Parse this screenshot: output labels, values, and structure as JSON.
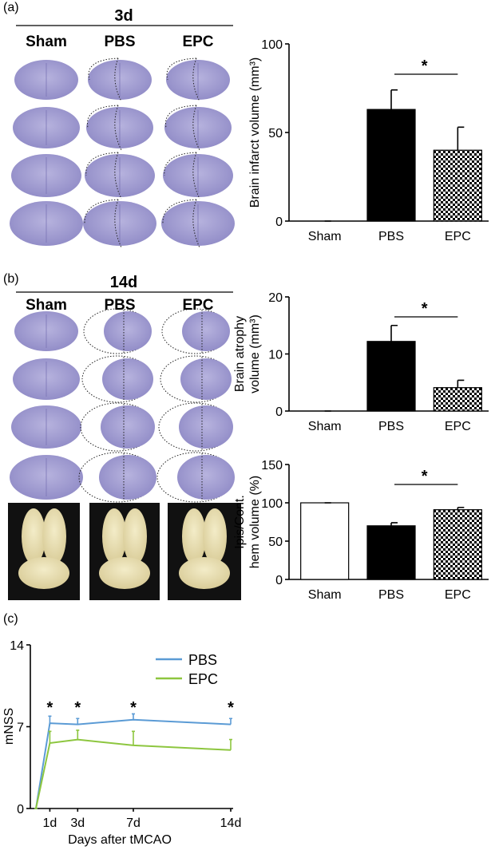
{
  "panels": [
    {
      "label": "(a)",
      "heading": "3d",
      "columns": [
        "Sham",
        "PBS",
        "EPC"
      ]
    },
    {
      "label": "(b)",
      "heading": "14d",
      "columns": [
        "Sham",
        "PBS",
        "EPC"
      ]
    },
    {
      "label": "(c)"
    }
  ],
  "chart_data": [
    {
      "type": "bar",
      "y_label": [
        "Brain infarct volume (mm³)"
      ],
      "categories": [
        "Sham",
        "PBS",
        "EPC"
      ],
      "values": [
        0,
        63,
        40
      ],
      "errors": [
        0,
        11,
        13
      ],
      "fills": [
        "white",
        "black",
        "checkered"
      ],
      "ylim": [
        0,
        100
      ],
      "yticks": [
        0,
        50,
        100
      ],
      "significance": {
        "label": "*"
      }
    },
    {
      "type": "bar",
      "y_label": [
        "Brain atrophy",
        "volume (mm³)"
      ],
      "categories": [
        "Sham",
        "PBS",
        "EPC"
      ],
      "values": [
        0,
        12.2,
        4.1
      ],
      "errors": [
        0,
        2.8,
        1.3
      ],
      "fills": [
        "white",
        "black",
        "checkered"
      ],
      "ylim": [
        0,
        20
      ],
      "yticks": [
        0,
        10,
        20
      ],
      "significance": {
        "label": "*"
      }
    },
    {
      "type": "bar",
      "y_label": [
        "Ipis/Cont.",
        "hem volume (%)"
      ],
      "categories": [
        "Sham",
        "PBS",
        "EPC"
      ],
      "values": [
        100,
        70,
        91
      ],
      "errors": [
        0,
        4,
        3
      ],
      "fills": [
        "white",
        "black",
        "checkered"
      ],
      "ylim": [
        0,
        150
      ],
      "yticks": [
        0,
        50,
        100,
        150
      ],
      "significance": {
        "label": "*"
      }
    },
    {
      "type": "line",
      "y_label": [
        "mNSS"
      ],
      "x_label": "Days after tMCAO",
      "x": [
        0,
        1,
        3,
        7,
        14
      ],
      "series": [
        {
          "name": "PBS",
          "color": "#5b9bd5",
          "values": [
            0,
            7.3,
            7.2,
            7.6,
            7.2
          ],
          "errors": [
            0,
            0.6,
            0.5,
            0.5,
            0.5
          ]
        },
        {
          "name": "EPC",
          "color": "#8dc63f",
          "values": [
            0,
            5.6,
            5.9,
            5.4,
            5.0
          ],
          "errors": [
            0,
            1.0,
            0.8,
            1.2,
            0.9
          ]
        }
      ],
      "xlim": [
        0,
        14
      ],
      "xticks": [
        {
          "value": 1,
          "label": "1d"
        },
        {
          "value": 3,
          "label": "3d"
        },
        {
          "value": 7,
          "label": "7d"
        },
        {
          "value": 14,
          "label": "14d"
        }
      ],
      "ylim": [
        0,
        14
      ],
      "yticks": [
        0,
        7,
        14
      ],
      "legend": "upper right",
      "significance": [
        {
          "x": 1,
          "label": "*"
        },
        {
          "x": 3,
          "label": "*"
        },
        {
          "x": 7,
          "label": "*"
        },
        {
          "x": 14,
          "label": "*"
        }
      ]
    }
  ]
}
